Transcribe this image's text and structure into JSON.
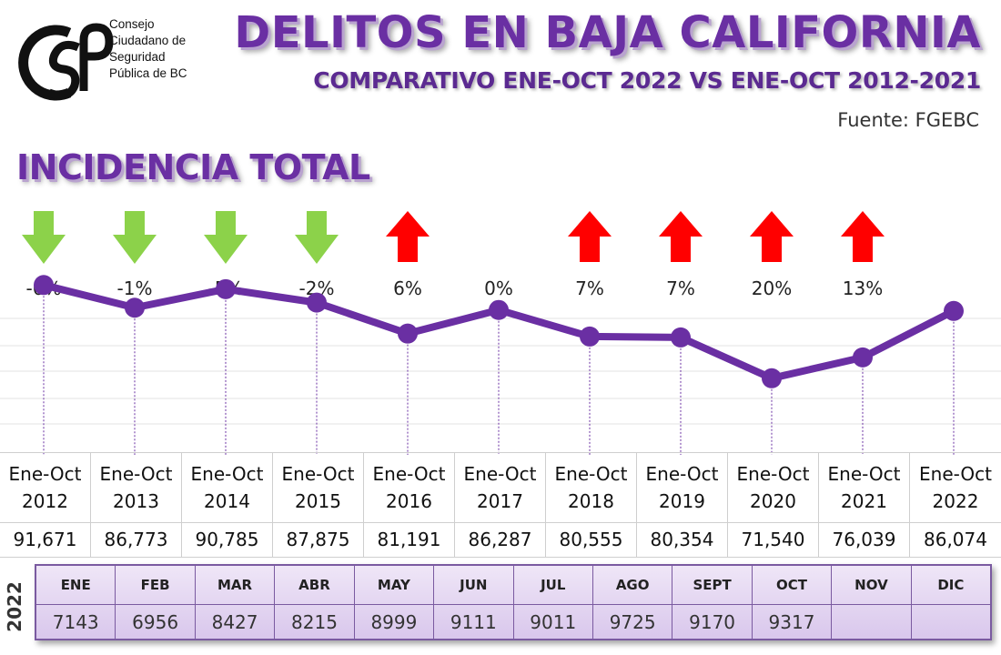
{
  "header": {
    "logo_lines": [
      "Consejo",
      "Ciudadano de",
      "Seguridad",
      "Pública de BC"
    ],
    "title": "DELITOS EN BAJA CALIFORNIA",
    "subtitle": "COMPARATIVO ENE-OCT 2022 VS ENE-OCT 2012-2021",
    "source": "Fuente: FGEBC"
  },
  "section_title": "INCIDENCIA TOTAL",
  "colors": {
    "line": "#6a2fa3",
    "up_arrow": "#ff0000",
    "down_arrow": "#8cd24a",
    "title": "#6a2fa3"
  },
  "chart_data": {
    "type": "line",
    "categories": [
      [
        "Ene-Oct",
        "2012"
      ],
      [
        "Ene-Oct",
        "2013"
      ],
      [
        "Ene-Oct",
        "2014"
      ],
      [
        "Ene-Oct",
        "2015"
      ],
      [
        "Ene-Oct",
        "2016"
      ],
      [
        "Ene-Oct",
        "2017"
      ],
      [
        "Ene-Oct",
        "2018"
      ],
      [
        "Ene-Oct",
        "2019"
      ],
      [
        "Ene-Oct",
        "2020"
      ],
      [
        "Ene-Oct",
        "2021"
      ],
      [
        "Ene-Oct",
        "2022"
      ]
    ],
    "values": [
      91671,
      86773,
      90785,
      87875,
      81191,
      86287,
      80555,
      80354,
      71540,
      76039,
      86074
    ],
    "value_labels": [
      "91,671",
      "86,773",
      "90,785",
      "87,875",
      "81,191",
      "86,287",
      "80,555",
      "80,354",
      "71,540",
      "76,039",
      "86,074"
    ],
    "changes": [
      {
        "label": "-6%",
        "dir": "down"
      },
      {
        "label": "-1%",
        "dir": "down"
      },
      {
        "label": "-5%",
        "dir": "down"
      },
      {
        "label": "-2%",
        "dir": "down"
      },
      {
        "label": "6%",
        "dir": "up"
      },
      {
        "label": "0%",
        "dir": "none"
      },
      {
        "label": "7%",
        "dir": "up"
      },
      {
        "label": "7%",
        "dir": "up"
      },
      {
        "label": "20%",
        "dir": "up"
      },
      {
        "label": "13%",
        "dir": "up"
      }
    ],
    "grid": true,
    "legend": "none"
  },
  "monthly_2022": {
    "year_label": "2022",
    "months": [
      "ENE",
      "FEB",
      "MAR",
      "ABR",
      "MAY",
      "JUN",
      "JUL",
      "AGO",
      "SEPT",
      "OCT",
      "NOV",
      "DIC"
    ],
    "values": [
      "7143",
      "6956",
      "8427",
      "8215",
      "8999",
      "9111",
      "9011",
      "9725",
      "9170",
      "9317",
      "",
      ""
    ]
  }
}
